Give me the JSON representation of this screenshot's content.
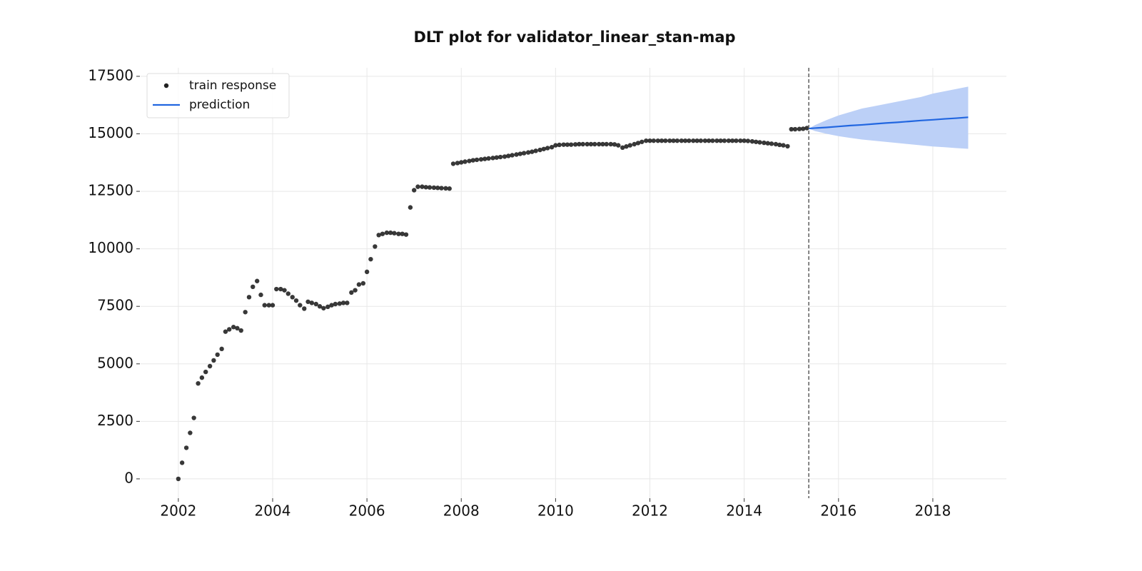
{
  "chart_data": {
    "type": "scatter",
    "title": "DLT plot for validator_linear_stan-map",
    "xlim": [
      2001.2,
      2019.56
    ],
    "xticks": [
      2002,
      2004,
      2006,
      2008,
      2010,
      2012,
      2014,
      2016,
      2018
    ],
    "ylim": [
      -840,
      17870
    ],
    "yticks": [
      0,
      2500,
      5000,
      7500,
      10000,
      12500,
      15000,
      17500
    ],
    "grid": true,
    "legend": "upper left",
    "vline": 2015.37,
    "series": [
      {
        "name": "train response",
        "color": "#222222",
        "x": [
          2002.0,
          2002.08,
          2002.17,
          2002.25,
          2002.33,
          2002.42,
          2002.5,
          2002.58,
          2002.67,
          2002.75,
          2002.83,
          2002.92,
          2003.0,
          2003.08,
          2003.17,
          2003.25,
          2003.33,
          2003.42,
          2003.5,
          2003.58,
          2003.67,
          2003.75,
          2003.83,
          2003.92,
          2004.0,
          2004.08,
          2004.17,
          2004.25,
          2004.33,
          2004.42,
          2004.5,
          2004.58,
          2004.67,
          2004.75,
          2004.83,
          2004.92,
          2005.0,
          2005.08,
          2005.17,
          2005.25,
          2005.33,
          2005.42,
          2005.5,
          2005.58,
          2005.67,
          2005.75,
          2005.83,
          2005.92,
          2006.0,
          2006.08,
          2006.17,
          2006.25,
          2006.33,
          2006.42,
          2006.5,
          2006.58,
          2006.67,
          2006.75,
          2006.83,
          2006.92,
          2007.0,
          2007.08,
          2007.17,
          2007.25,
          2007.33,
          2007.42,
          2007.5,
          2007.58,
          2007.67,
          2007.75,
          2007.83,
          2007.92,
          2008.0,
          2008.08,
          2008.17,
          2008.25,
          2008.33,
          2008.42,
          2008.5,
          2008.58,
          2008.67,
          2008.75,
          2008.83,
          2008.92,
          2009.0,
          2009.08,
          2009.17,
          2009.25,
          2009.33,
          2009.42,
          2009.5,
          2009.58,
          2009.67,
          2009.75,
          2009.83,
          2009.92,
          2010.0,
          2010.08,
          2010.17,
          2010.25,
          2010.33,
          2010.42,
          2010.5,
          2010.58,
          2010.67,
          2010.75,
          2010.83,
          2010.92,
          2011.0,
          2011.08,
          2011.17,
          2011.25,
          2011.33,
          2011.42,
          2011.5,
          2011.58,
          2011.67,
          2011.75,
          2011.83,
          2011.92,
          2012.0,
          2012.08,
          2012.17,
          2012.25,
          2012.33,
          2012.42,
          2012.5,
          2012.58,
          2012.67,
          2012.75,
          2012.83,
          2012.92,
          2013.0,
          2013.08,
          2013.17,
          2013.25,
          2013.33,
          2013.42,
          2013.5,
          2013.58,
          2013.67,
          2013.75,
          2013.83,
          2013.92,
          2014.0,
          2014.08,
          2014.17,
          2014.25,
          2014.33,
          2014.42,
          2014.5,
          2014.58,
          2014.67,
          2014.75,
          2014.83,
          2014.92,
          2015.0,
          2015.08,
          2015.17,
          2015.25,
          2015.33
        ],
        "values": [
          0,
          700,
          1350,
          2000,
          2650,
          4150,
          4400,
          4650,
          4900,
          5150,
          5400,
          5650,
          6400,
          6500,
          6600,
          6550,
          6450,
          7250,
          7900,
          8350,
          8600,
          8000,
          7550,
          7550,
          7550,
          8250,
          8250,
          8200,
          8050,
          7900,
          7750,
          7550,
          7400,
          7700,
          7650,
          7600,
          7500,
          7420,
          7480,
          7550,
          7600,
          7620,
          7650,
          7650,
          8100,
          8200,
          8450,
          8500,
          9000,
          9550,
          10100,
          10600,
          10650,
          10700,
          10700,
          10680,
          10650,
          10650,
          10620,
          11800,
          12550,
          12700,
          12700,
          12680,
          12670,
          12660,
          12650,
          12640,
          12630,
          12620,
          13700,
          13730,
          13760,
          13790,
          13820,
          13850,
          13870,
          13890,
          13910,
          13930,
          13950,
          13970,
          13990,
          14010,
          14040,
          14070,
          14100,
          14130,
          14160,
          14190,
          14220,
          14260,
          14300,
          14340,
          14380,
          14420,
          14500,
          14520,
          14530,
          14530,
          14530,
          14540,
          14550,
          14550,
          14550,
          14550,
          14550,
          14550,
          14550,
          14550,
          14550,
          14540,
          14500,
          14400,
          14450,
          14500,
          14550,
          14600,
          14650,
          14700,
          14700,
          14700,
          14700,
          14700,
          14700,
          14700,
          14700,
          14700,
          14700,
          14700,
          14700,
          14700,
          14700,
          14700,
          14700,
          14700,
          14700,
          14700,
          14700,
          14700,
          14700,
          14700,
          14700,
          14700,
          14700,
          14690,
          14670,
          14650,
          14630,
          14610,
          14590,
          14570,
          14550,
          14520,
          14500,
          14460,
          15200,
          15200,
          15210,
          15220,
          15250
        ]
      },
      {
        "name": "prediction",
        "color": "#2166e0",
        "band_color": "#bcd0f7",
        "x": [
          2015.37,
          2015.5,
          2015.75,
          2016,
          2016.25,
          2016.5,
          2016.75,
          2017,
          2017.25,
          2017.5,
          2017.75,
          2018,
          2018.25,
          2018.5,
          2018.75
        ],
        "values": [
          15230,
          15250,
          15280,
          15320,
          15360,
          15390,
          15430,
          15470,
          15500,
          15540,
          15580,
          15610,
          15650,
          15680,
          15720
        ],
        "lower": [
          15230,
          15120,
          15000,
          14900,
          14820,
          14750,
          14700,
          14650,
          14600,
          14550,
          14500,
          14450,
          14420,
          14380,
          14350
        ],
        "upper": [
          15230,
          15380,
          15600,
          15800,
          15950,
          16100,
          16200,
          16300,
          16400,
          16500,
          16600,
          16750,
          16850,
          16950,
          17050
        ]
      }
    ]
  }
}
